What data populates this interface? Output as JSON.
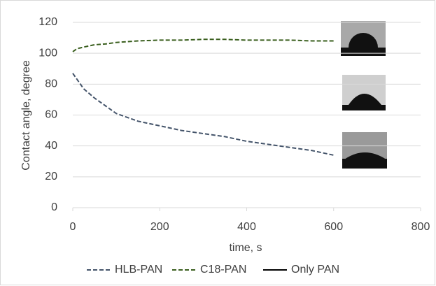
{
  "chart_data": {
    "type": "line",
    "xlabel": "time, s",
    "ylabel": "Contact angle, degree",
    "x": [
      0,
      10,
      25,
      50,
      75,
      100,
      150,
      200,
      250,
      300,
      350,
      400,
      450,
      500,
      550,
      600
    ],
    "series": [
      {
        "name": "HLB-PAN",
        "color": "#44546a",
        "dash": true,
        "values": [
          87,
          83,
          77,
          71,
          66,
          61,
          56,
          53,
          50,
          48,
          46,
          43,
          41,
          39,
          37,
          34
        ]
      },
      {
        "name": "C18-PAN",
        "color": "#3a5f1e",
        "dash": true,
        "values": [
          101,
          103,
          104,
          105.5,
          106,
          107,
          108,
          108.5,
          108.5,
          109,
          109,
          108.5,
          108.5,
          108.5,
          108,
          108
        ]
      },
      {
        "name": "Only PAN",
        "color": "#000000",
        "dash": false,
        "values": [
          null,
          null,
          null,
          null,
          null,
          null,
          null,
          null,
          null,
          null,
          null,
          null,
          null,
          null,
          null,
          null
        ]
      }
    ],
    "xlim": [
      0,
      800
    ],
    "xticks": [
      0,
      200,
      400,
      600,
      800
    ],
    "ylim": [
      0,
      120
    ],
    "yticks": [
      0,
      20,
      40,
      60,
      80,
      100,
      120
    ],
    "grid": true,
    "legend": "bottom"
  }
}
